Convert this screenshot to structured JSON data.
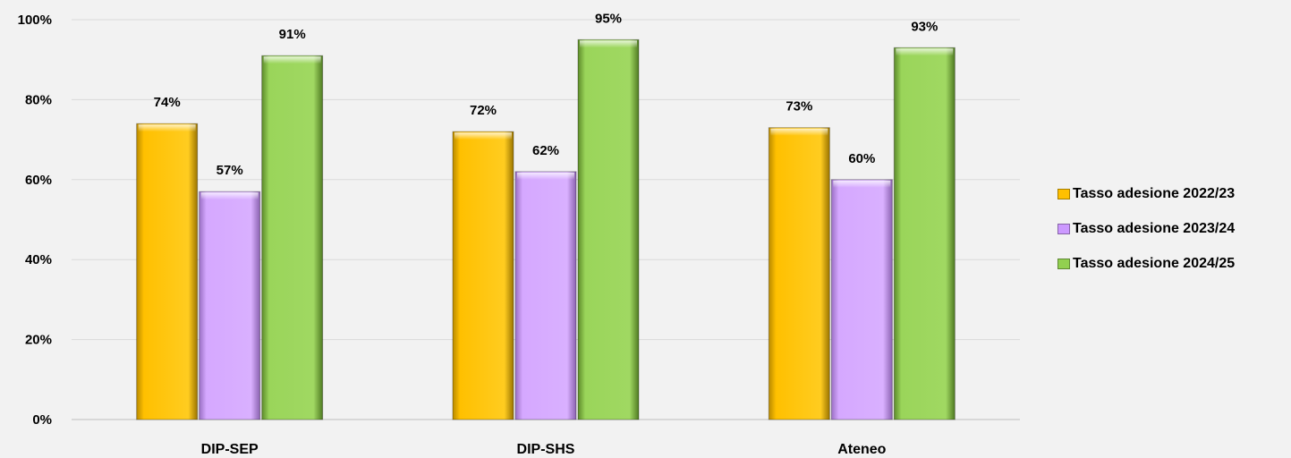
{
  "chart_data": {
    "type": "bar",
    "categories": [
      "DIP-SEP",
      "DIP-SHS",
      "Ateneo"
    ],
    "series": [
      {
        "name": "Tasso adesione 2022/23",
        "values": [
          74,
          72,
          73
        ],
        "labels": [
          "74%",
          "72%",
          "73%"
        ],
        "color": "#ffc000"
      },
      {
        "name": "Tasso adesione 2023/24",
        "values": [
          57,
          62,
          60
        ],
        "labels": [
          "57%",
          "62%",
          "60%"
        ],
        "color": "#cc99ff"
      },
      {
        "name": "Tasso adesione 2024/25",
        "values": [
          91,
          95,
          93
        ],
        "labels": [
          "91%",
          "95%",
          "93%"
        ],
        "color": "#92d050"
      }
    ],
    "y_ticks": [
      {
        "value": 0,
        "label": "0%"
      },
      {
        "value": 20,
        "label": "20%"
      },
      {
        "value": 40,
        "label": "40%"
      },
      {
        "value": 60,
        "label": "60%"
      },
      {
        "value": 80,
        "label": "80%"
      },
      {
        "value": 100,
        "label": "100%"
      }
    ],
    "ylim": [
      0,
      100
    ],
    "grid": true,
    "legend_position": "right"
  }
}
